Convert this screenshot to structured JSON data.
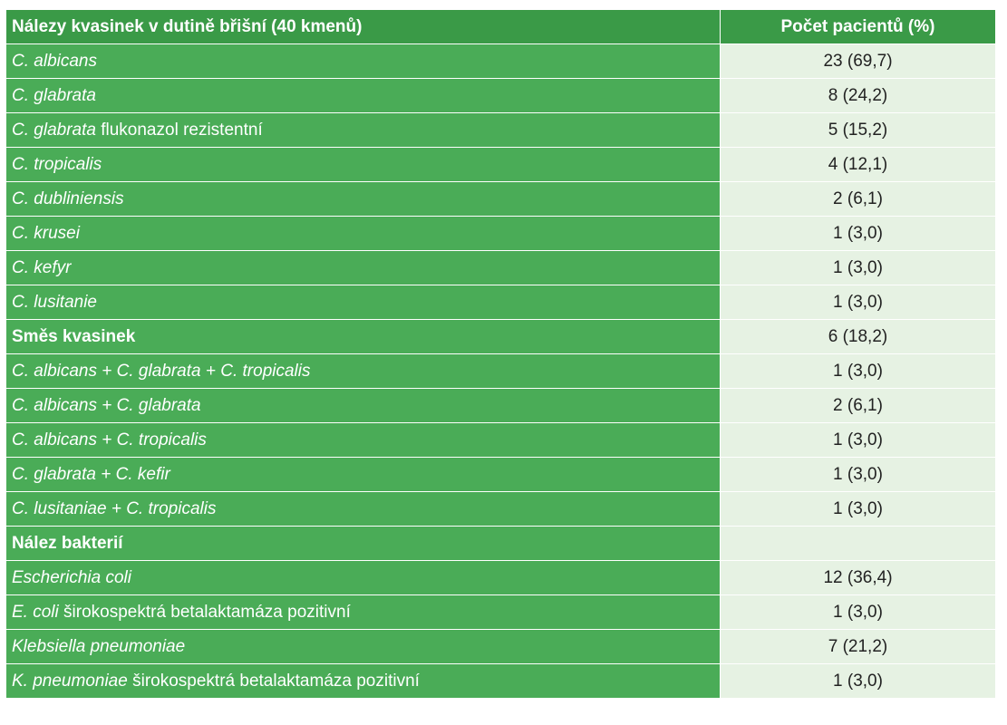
{
  "table": {
    "header": {
      "col1": "Nálezy kvasinek v dutině břišní (40 kmenů)",
      "col2": "Počet pacientů (%)"
    },
    "rows": [
      {
        "italic": "C. albicans",
        "plain": "",
        "value": "23 (69,7)"
      },
      {
        "italic": "C. glabrata",
        "plain": "",
        "value": "8 (24,2)"
      },
      {
        "italic": "C. glabrata",
        "plain": " flukonazol rezistentní",
        "value": "5 (15,2)"
      },
      {
        "italic": "C. tropicalis",
        "plain": "",
        "value": "4 (12,1)"
      },
      {
        "italic": "C. dubliniensis",
        "plain": "",
        "value": "2 (6,1)"
      },
      {
        "italic": "C. krusei",
        "plain": "",
        "value": "1 (3,0)"
      },
      {
        "italic": "C. kefyr",
        "plain": "",
        "value": "1 (3,0)"
      },
      {
        "italic": "C. lusitanie",
        "plain": "",
        "value": "1 (3,0)"
      },
      {
        "bold": "Směs kvasinek",
        "value": "6 (18,2)"
      },
      {
        "italic": "C. albicans + C. glabrata + C. tropicalis",
        "plain": "",
        "value": "1 (3,0)"
      },
      {
        "italic": "C. albicans + C. glabrata",
        "plain": "",
        "value": "2 (6,1)"
      },
      {
        "italic": "C. albicans + C. tropicalis",
        "plain": "",
        "value": "1 (3,0)"
      },
      {
        "italic": "C. glabrata + C. kefir",
        "plain": "",
        "value": "1 (3,0)"
      },
      {
        "italic": "C. lusitaniae + C. tropicalis",
        "plain": "",
        "value": "1 (3,0)"
      },
      {
        "bold": "Nález bakterií",
        "value": ""
      },
      {
        "italic": "Escherichia coli",
        "plain": "",
        "value": "12 (36,4)"
      },
      {
        "italic": "E. coli",
        "plain": " širokospektrá betalaktamáza pozitivní",
        "value": "1 (3,0)"
      },
      {
        "italic": "Klebsiella pneumoniae",
        "plain": "",
        "value": "7 (21,2)"
      },
      {
        "italic": "K. pneumoniae",
        "plain": " širokospektrá betalaktamáza pozitivní",
        "value": "1 (3,0)"
      }
    ]
  },
  "colors": {
    "header_bg": "#3a9a47",
    "label_bg": "#4aac57",
    "value_bg": "#e6f2e3"
  }
}
